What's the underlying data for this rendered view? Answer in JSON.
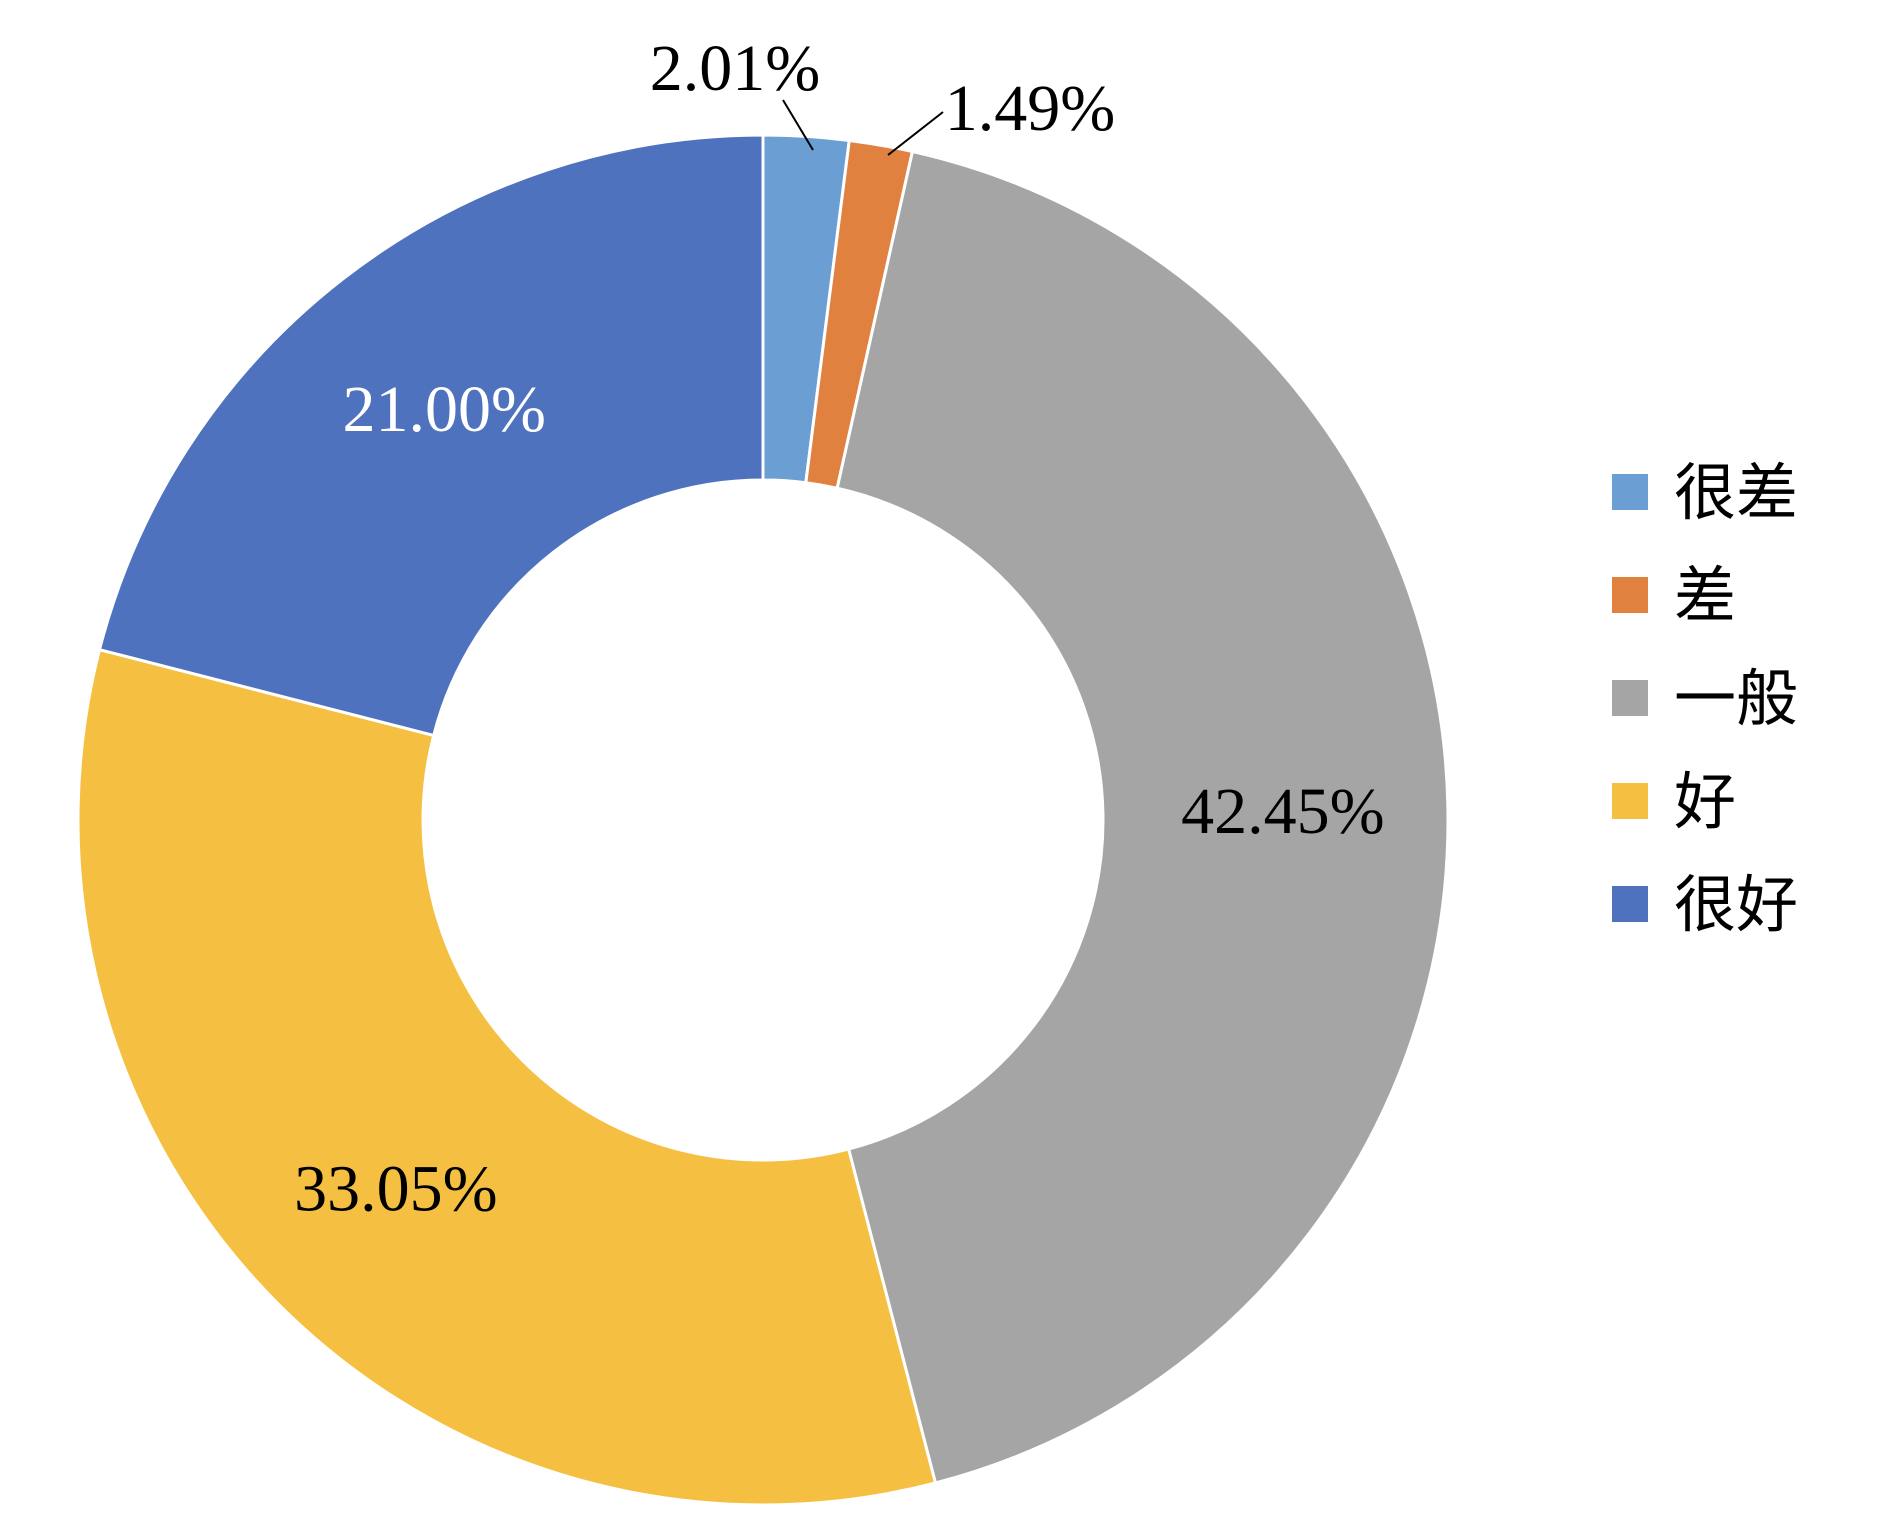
{
  "chart_data": {
    "type": "pie",
    "style": "donut",
    "title": "",
    "categories": [
      "很差",
      "差",
      "一般",
      "好",
      "很好"
    ],
    "values": [
      2.01,
      1.49,
      42.45,
      33.05,
      21.0
    ],
    "labels": [
      "2.01%",
      "1.49%",
      "42.45%",
      "33.05%",
      "21.00%"
    ],
    "colors": [
      "#6b9fd4",
      "#e0813f",
      "#a5a5a5",
      "#f5c042",
      "#4f72bf"
    ],
    "label_colors": [
      "#000000",
      "#000000",
      "#000000",
      "#000000",
      "#ffffff"
    ],
    "start_angle_deg": 0,
    "direction": "clockwise",
    "legend_position": "right"
  }
}
